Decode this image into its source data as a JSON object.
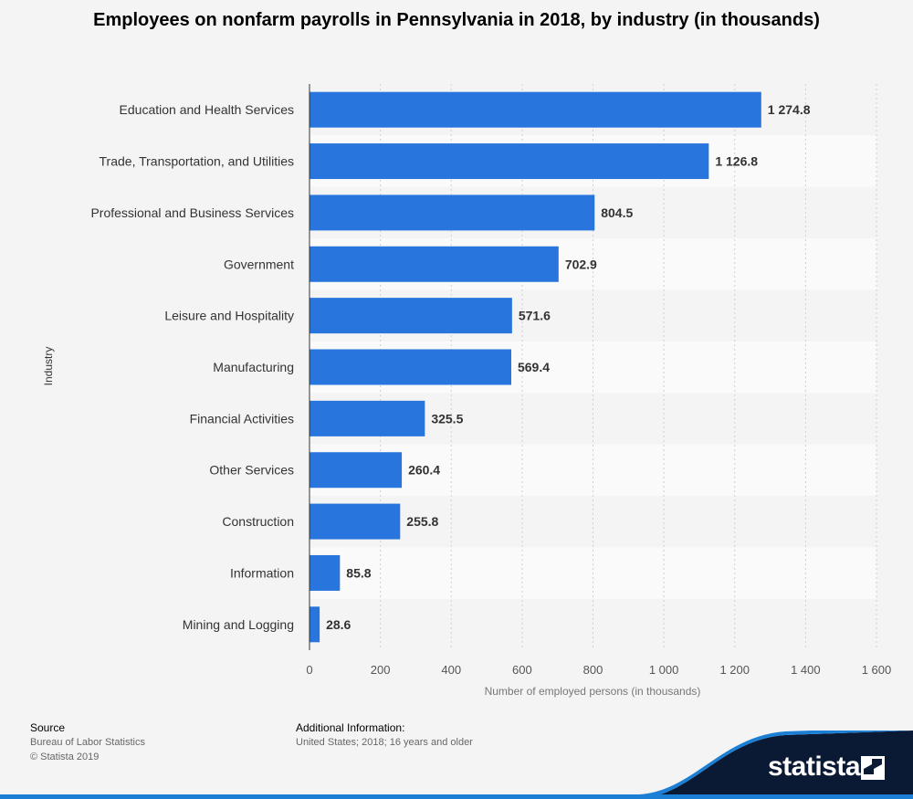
{
  "title": "Employees on nonfarm payrolls in Pennsylvania in 2018, by industry (in thousands)",
  "chart_data": {
    "type": "bar",
    "orientation": "horizontal",
    "title": "Employees on nonfarm payrolls in Pennsylvania in 2018, by industry (in thousands)",
    "xlabel": "Number of employed persons (in thousands)",
    "ylabel": "Industry",
    "categories": [
      "Education and Health Services",
      "Trade, Transportation, and Utilities",
      "Professional and Business Services",
      "Government",
      "Leisure and Hospitality",
      "Manufacturing",
      "Financial Activities",
      "Other Services",
      "Construction",
      "Information",
      "Mining and Logging"
    ],
    "values": [
      1274.8,
      1126.8,
      804.5,
      702.9,
      571.6,
      569.4,
      325.5,
      260.4,
      255.8,
      85.8,
      28.6
    ],
    "value_labels": [
      "1 274.8",
      "1 126.8",
      "804.5",
      "702.9",
      "571.6",
      "569.4",
      "325.5",
      "260.4",
      "255.8",
      "85.8",
      "28.6"
    ],
    "xlim": [
      0,
      1600
    ],
    "ticks": [
      0,
      200,
      400,
      600,
      800,
      1000,
      1200,
      1400,
      1600
    ],
    "tick_labels": [
      "0",
      "200",
      "400",
      "600",
      "800",
      "1 000",
      "1 200",
      "1 400",
      "1 600"
    ],
    "grid": true,
    "bar_color": "#2876dd"
  },
  "footer": {
    "source_label": "Source",
    "source_lines": [
      "Bureau of Labor Statistics",
      "© Statista 2019"
    ],
    "additional_label": "Additional Information:",
    "additional_text": "United States; 2018; 16 years and older"
  },
  "brand": {
    "name": "statista",
    "band_color": "#0a1a34",
    "accent_color": "#1b7fd6"
  }
}
